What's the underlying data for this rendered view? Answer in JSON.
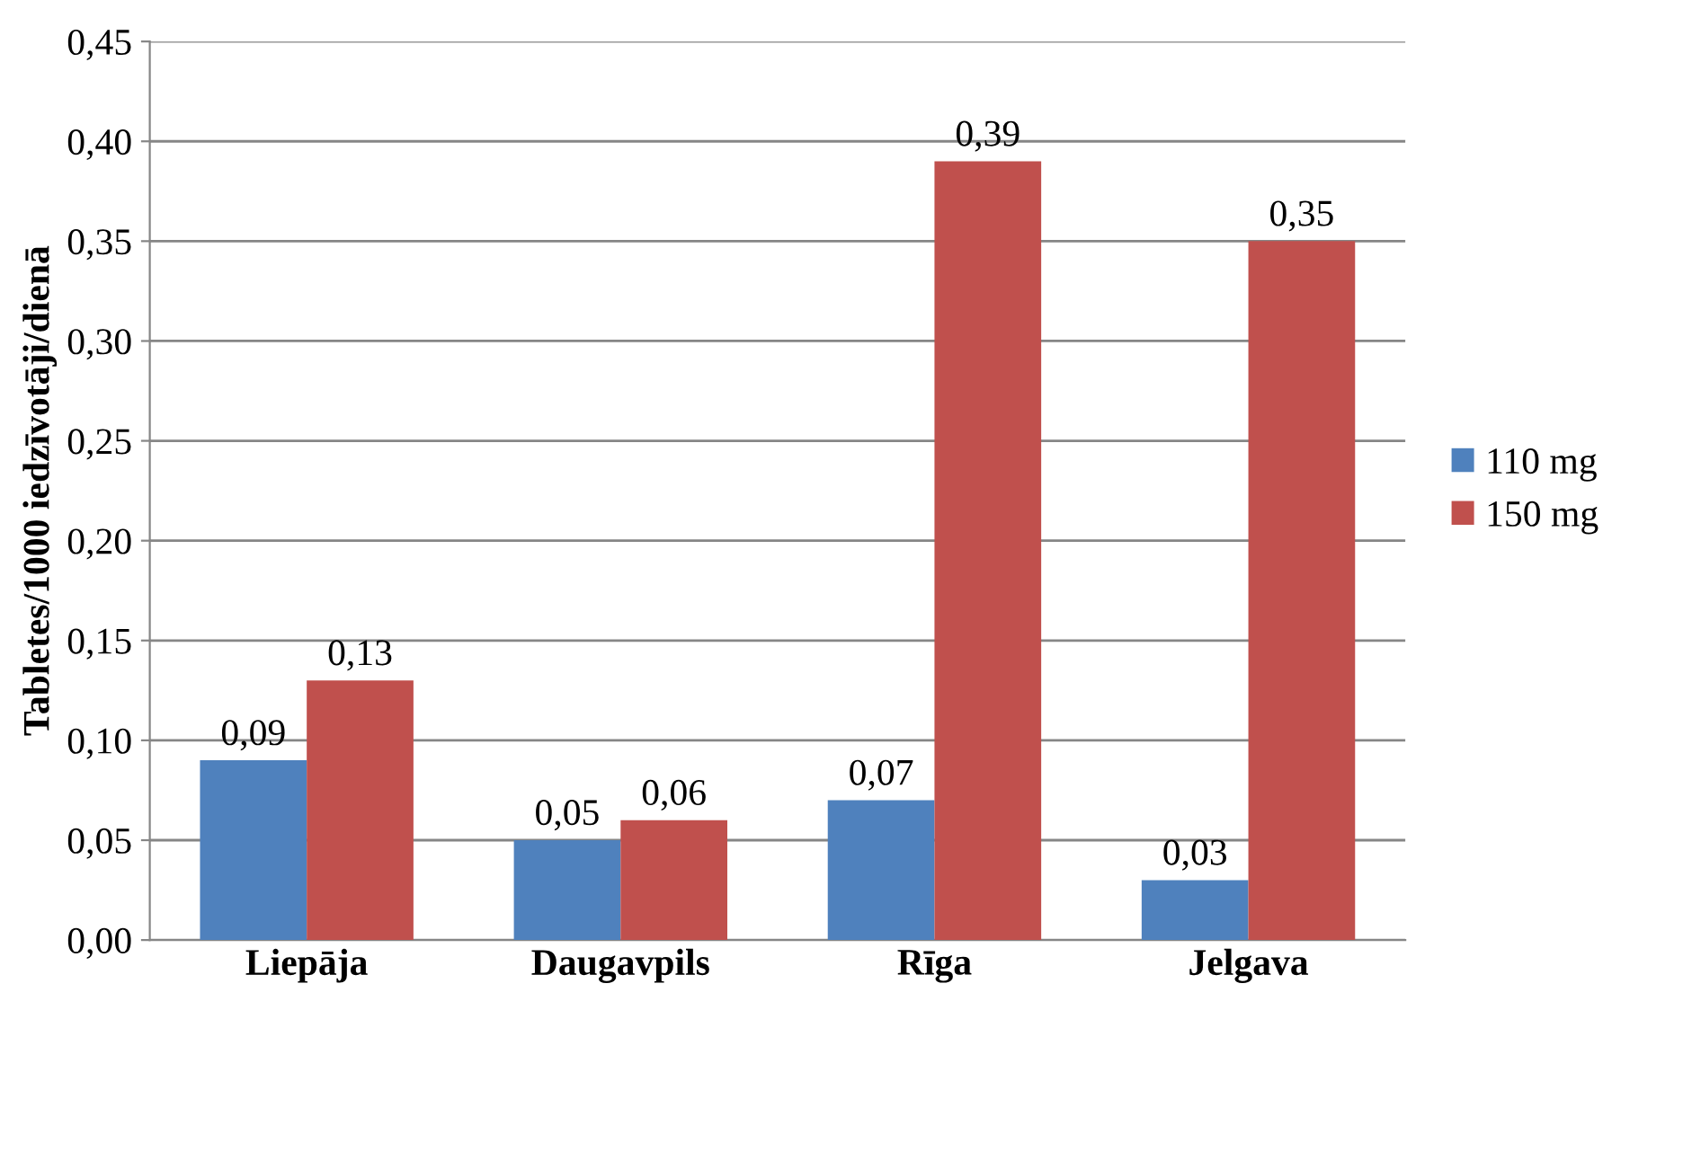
{
  "chart_data": {
    "type": "bar",
    "ylabel": "Tabletes/1000 iedzīvotāji/dienā",
    "categories": [
      "Liepāja",
      "Daugavpils",
      "Rīga",
      "Jelgava"
    ],
    "series": [
      {
        "name": "110 mg",
        "color": "#4f81bd",
        "values": [
          0.09,
          0.05,
          0.07,
          0.03
        ],
        "value_labels": [
          "0,09",
          "0,05",
          "0,07",
          "0,03"
        ]
      },
      {
        "name": "150 mg",
        "color": "#c0504d",
        "values": [
          0.13,
          0.06,
          0.39,
          0.35
        ],
        "value_labels": [
          "0,13",
          "0,06",
          "0,39",
          "0,35"
        ]
      }
    ],
    "ylim": [
      0,
      0.45
    ],
    "yticks": [
      {
        "value": 0,
        "label": "0,00"
      },
      {
        "value": 0.05,
        "label": "0,05"
      },
      {
        "value": 0.1,
        "label": "0,10"
      },
      {
        "value": 0.15,
        "label": "0,15"
      },
      {
        "value": 0.2,
        "label": "0,20"
      },
      {
        "value": 0.25,
        "label": "0,25"
      },
      {
        "value": 0.3,
        "label": "0,30"
      },
      {
        "value": 0.35,
        "label": "0,35"
      },
      {
        "value": 0.4,
        "label": "0,40"
      },
      {
        "value": 0.45,
        "label": "0,45"
      }
    ],
    "grid": "y",
    "legend": "right"
  }
}
